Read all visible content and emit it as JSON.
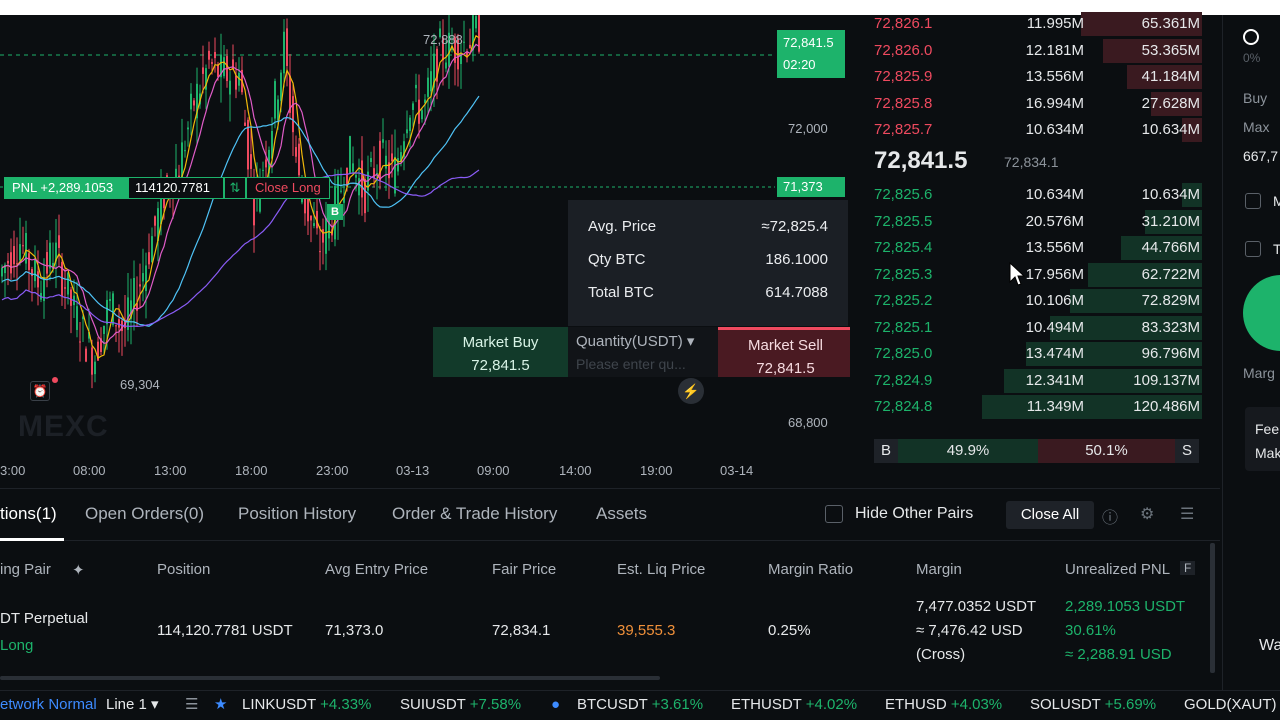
{
  "chart": {
    "price_ticks": [
      "72,000",
      "68,800"
    ],
    "time_ticks": [
      "3:00",
      "08:00",
      "13:00",
      "18:00",
      "23:00",
      "03-13",
      "09:00",
      "14:00",
      "19:00",
      "03-14"
    ],
    "last_price": "72,841.5",
    "countdown": "02:20",
    "entry_line_price": "71,373",
    "high_label": "72,888",
    "low_label": "69,304",
    "watermark": "MEXC",
    "buy_marker": "B",
    "pnl": {
      "label": "PNL +2,289.1053",
      "qty": "114120.7781",
      "reverse_icon": "⇅",
      "close_label": "Close Long"
    }
  },
  "quick_trade": {
    "avg_price_label": "Avg. Price",
    "avg_price_value": "≈72,825.4",
    "qty_label": "Qty BTC",
    "qty_value": "186.1000",
    "total_label": "Total BTC",
    "total_value": "614.7088",
    "buy_label": "Market Buy",
    "buy_price": "72,841.5",
    "quantity_label": "Quantity(USDT)",
    "quantity_placeholder": "Please enter qu...",
    "sell_label": "Market Sell",
    "sell_price": "72,841.5",
    "close_icon": "×",
    "bolt_icon": "⚡"
  },
  "order_book": {
    "asks": [
      {
        "price": "72,826.1",
        "qty": "11.995M",
        "total": "65.361M",
        "depth": 0.55
      },
      {
        "price": "72,826.0",
        "qty": "12.181M",
        "total": "53.365M",
        "depth": 0.45
      },
      {
        "price": "72,825.9",
        "qty": "13.556M",
        "total": "41.184M",
        "depth": 0.34
      },
      {
        "price": "72,825.8",
        "qty": "16.994M",
        "total": "27.628M",
        "depth": 0.23
      },
      {
        "price": "72,825.7",
        "qty": "10.634M",
        "total": "10.634M",
        "depth": 0.09
      }
    ],
    "mid_price": "72,841.5",
    "mid_fair": "72,834.1",
    "bids": [
      {
        "price": "72,825.6",
        "qty": "10.634M",
        "total": "10.634M",
        "depth": 0.09
      },
      {
        "price": "72,825.5",
        "qty": "20.576M",
        "total": "31.210M",
        "depth": 0.26
      },
      {
        "price": "72,825.4",
        "qty": "13.556M",
        "total": "44.766M",
        "depth": 0.37
      },
      {
        "price": "72,825.3",
        "qty": "17.956M",
        "total": "62.722M",
        "depth": 0.52
      },
      {
        "price": "72,825.2",
        "qty": "10.106M",
        "total": "72.829M",
        "depth": 0.6
      },
      {
        "price": "72,825.1",
        "qty": "10.494M",
        "total": "83.323M",
        "depth": 0.69
      },
      {
        "price": "72,825.0",
        "qty": "13.474M",
        "total": "96.796M",
        "depth": 0.8
      },
      {
        "price": "72,824.9",
        "qty": "12.341M",
        "total": "109.137M",
        "depth": 0.9
      },
      {
        "price": "72,824.8",
        "qty": "11.349M",
        "total": "120.486M",
        "depth": 1.0
      }
    ],
    "ratio": {
      "buy_tag": "B",
      "buy_pct": "49.9%",
      "sell_pct": "50.1%",
      "sell_tag": "S"
    }
  },
  "right_strip": {
    "pct": "0%",
    "buy": "Buy",
    "max": "Max",
    "amount": "667,7",
    "m": "M",
    "t": "T",
    "marg": "Marg",
    "fee": "Fee",
    "mak": "Mak",
    "wall": "Wall"
  },
  "positions": {
    "tabs": [
      "tions(1)",
      "Open Orders(0)",
      "Position History",
      "Order & Trade History",
      "Assets"
    ],
    "hide_other_pairs": "Hide Other Pairs",
    "close_all": "Close All",
    "headers": [
      "ing Pair",
      "Position",
      "Avg Entry Price",
      "Fair Price",
      "Est. Liq Price",
      "Margin Ratio",
      "Margin",
      "Unrealized PNL"
    ],
    "header_pin": "📌",
    "header_f": "F",
    "row": {
      "pair": "DT  Perpetual",
      "side": "Long",
      "position": "114,120.7781 USDT",
      "avg_entry": "71,373.0",
      "fair_price": "72,834.1",
      "liq_price": "39,555.3",
      "margin_ratio": "0.25%",
      "margin_1": "7,477.0352 USDT",
      "margin_2": "≈ 7,476.42 USD",
      "margin_3": "(Cross)",
      "pnl_1": "2,289.1053 USDT",
      "pnl_2": "30.61%",
      "pnl_3": "≈ 2,288.91 USD"
    }
  },
  "ticker": {
    "network": "etwork Normal",
    "line": "Line 1",
    "items": [
      {
        "sym": "LINKUSDT",
        "chg": "+4.33%"
      },
      {
        "sym": "SUIUSDT",
        "chg": "+7.58%"
      },
      {
        "sym": "BTCUSDT",
        "chg": "+3.61%"
      },
      {
        "sym": "ETHUSDT",
        "chg": "+4.02%"
      },
      {
        "sym": "ETHUSD",
        "chg": "+4.03%"
      },
      {
        "sym": "SOLUSDT",
        "chg": "+5.69%"
      }
    ],
    "last": "GOLD(XAUT)"
  }
}
